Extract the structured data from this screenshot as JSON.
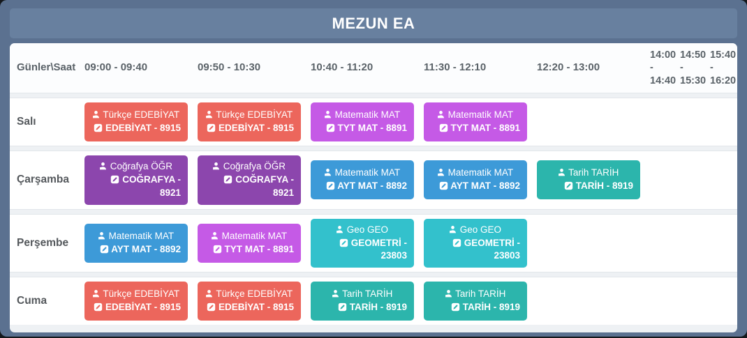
{
  "title": "MEZUN EA",
  "schedule": {
    "corner_label": "Günler\\Saat",
    "time_slots": [
      "09:00 - 09:40",
      "09:50 - 10:30",
      "10:40 - 11:20",
      "11:30 - 12:10",
      "12:20 - 13:00",
      "14:00 - 14:40",
      "14:50 - 15:30",
      "15:40 - 16:20"
    ],
    "days": [
      {
        "day": "Salı",
        "cells": [
          {
            "teacher": "Türkçe EDEBİYAT",
            "lesson": "EDEBİYAT - 8915",
            "color": "#ec665c"
          },
          {
            "teacher": "Türkçe EDEBİYAT",
            "lesson": "EDEBİYAT - 8915",
            "color": "#ec665c"
          },
          {
            "teacher": "Matematik MAT",
            "lesson": "TYT MAT - 8891",
            "color": "#c55ae6"
          },
          {
            "teacher": "Matematik MAT",
            "lesson": "TYT MAT - 8891",
            "color": "#c55ae6"
          },
          null,
          null,
          null,
          null
        ]
      },
      {
        "day": "Çarşamba",
        "cells": [
          {
            "teacher": "Coğrafya ÖĞR",
            "lesson": "COĞRAFYA - 8921",
            "color": "#8c46ad"
          },
          {
            "teacher": "Coğrafya ÖĞR",
            "lesson": "COĞRAFYA - 8921",
            "color": "#8c46ad"
          },
          {
            "teacher": "Matematik MAT",
            "lesson": "AYT MAT - 8892",
            "color": "#3d9ad8"
          },
          {
            "teacher": "Matematik MAT",
            "lesson": "AYT MAT - 8892",
            "color": "#3d9ad8"
          },
          {
            "teacher": "Tarih TARİH",
            "lesson": "TARİH - 8919",
            "color": "#2cb5ac"
          },
          null,
          null,
          null
        ]
      },
      {
        "day": "Perşembe",
        "cells": [
          {
            "teacher": "Matematik MAT",
            "lesson": "AYT MAT - 8892",
            "color": "#3d9ad8"
          },
          {
            "teacher": "Matematik MAT",
            "lesson": "TYT MAT - 8891",
            "color": "#c55ae6"
          },
          {
            "teacher": "Geo GEO",
            "lesson": "GEOMETRİ - 23803",
            "color": "#33c1cc"
          },
          {
            "teacher": "Geo GEO",
            "lesson": "GEOMETRİ - 23803",
            "color": "#33c1cc"
          },
          null,
          null,
          null,
          null
        ]
      },
      {
        "day": "Cuma",
        "cells": [
          {
            "teacher": "Türkçe EDEBİYAT",
            "lesson": "EDEBİYAT - 8915",
            "color": "#ec665c"
          },
          {
            "teacher": "Türkçe EDEBİYAT",
            "lesson": "EDEBİYAT - 8915",
            "color": "#ec665c"
          },
          {
            "teacher": "Tarih TARİH",
            "lesson": "TARİH - 8919",
            "color": "#2cb5ac"
          },
          {
            "teacher": "Tarih TARİH",
            "lesson": "TARİH - 8919",
            "color": "#2cb5ac"
          },
          null,
          null,
          null,
          null
        ]
      }
    ]
  },
  "icons": {
    "teacher": "teacher-icon",
    "lesson": "edit-icon"
  },
  "colors": {
    "frame": "#5b7190",
    "title_bar": "#68809f",
    "card_background": "#eef1f4",
    "header_text": "#5a6268",
    "subject_edebiyat": "#ec665c",
    "subject_tyt_mat": "#c55ae6",
    "subject_cografya": "#8c46ad",
    "subject_ayt_mat": "#3d9ad8",
    "subject_tarih": "#2cb5ac",
    "subject_geometri": "#33c1cc"
  }
}
